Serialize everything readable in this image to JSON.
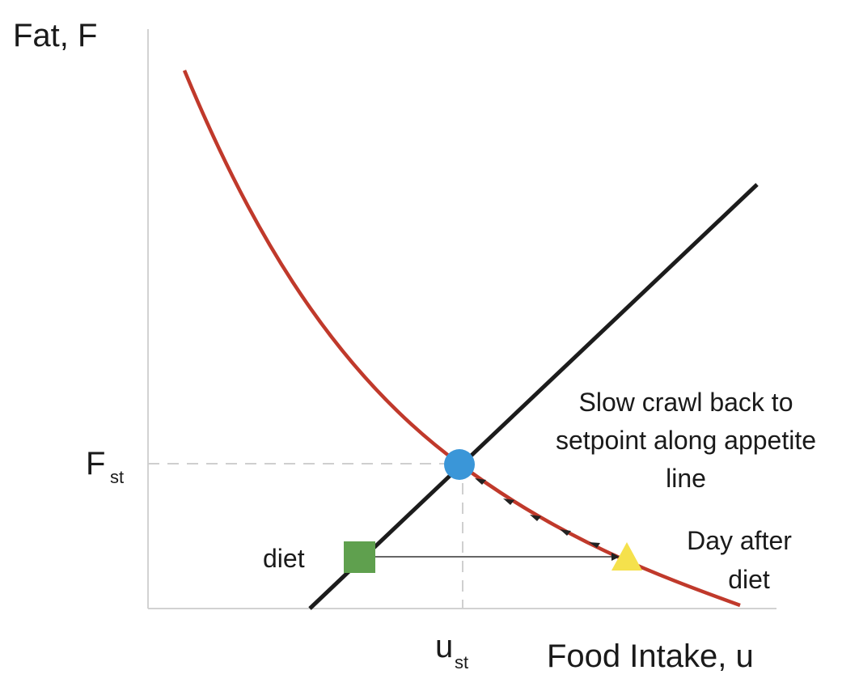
{
  "diagram": {
    "y_axis_label": "Fat, F",
    "x_axis_label": "Food Intake, u",
    "setpoint_fat": {
      "main": "F",
      "sub": "st"
    },
    "setpoint_intake": {
      "main": "u",
      "sub": "st"
    },
    "diet_label": "diet",
    "annotation_crawl": [
      "Slow crawl back to",
      "setpoint along appetite",
      "line"
    ],
    "annotation_day_after": [
      "Day after",
      "diet"
    ],
    "colors": {
      "appetite_curve": "#c0392b",
      "linear_line": "#1c1c1c",
      "setpoint_marker": "#3a96d8",
      "diet_marker": "#5fa04e",
      "day_after_marker": "#f5e14c",
      "axis": "#d2d2d2"
    },
    "markers": [
      "setpoint-circle",
      "diet-square",
      "day-after-triangle"
    ]
  }
}
